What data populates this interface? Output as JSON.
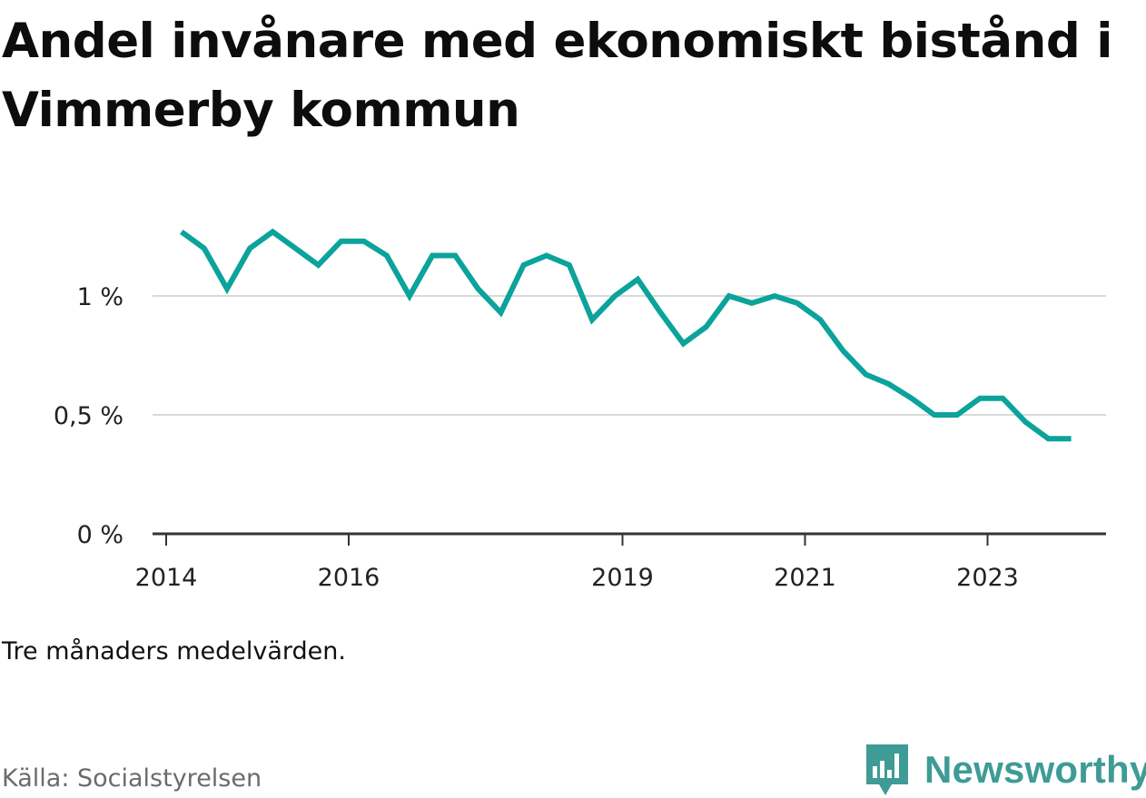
{
  "title": "Andel invånare med ekonomiskt bistånd i Vimmerby kommun",
  "note": "Tre månaders medelvärden.",
  "source": "Källa: Socialstyrelsen",
  "brand": {
    "name": "Newsworthy",
    "color": "#3e9b95"
  },
  "colors": {
    "line": "#0ba39b",
    "grid": "#d9d9d9",
    "axis": "#333333"
  },
  "chart_data": {
    "type": "line",
    "title": "Andel invånare med ekonomiskt bistånd i Vimmerby kommun",
    "xlabel": "",
    "ylabel": "",
    "grid": true,
    "legend": "none",
    "x_ticks": [
      "2014",
      "2016",
      "2019",
      "2021",
      "2023"
    ],
    "y_ticks": [
      "0 %",
      "0,5 %",
      "1 %"
    ],
    "y_tick_values": [
      0,
      0.5,
      1
    ],
    "ylim": [
      0,
      1.3
    ],
    "x": [
      "2014-03",
      "2014-06",
      "2014-09",
      "2014-12",
      "2015-03",
      "2015-06",
      "2015-09",
      "2015-12",
      "2016-03",
      "2016-06",
      "2016-09",
      "2016-12",
      "2017-03",
      "2017-06",
      "2017-09",
      "2017-12",
      "2018-03",
      "2018-06",
      "2018-09",
      "2018-12",
      "2019-03",
      "2019-06",
      "2019-09",
      "2019-12",
      "2020-03",
      "2020-06",
      "2020-09",
      "2020-12",
      "2021-03",
      "2021-06",
      "2021-09",
      "2021-12",
      "2022-03",
      "2022-06",
      "2022-09",
      "2022-12",
      "2023-03",
      "2023-06",
      "2023-09",
      "2023-12"
    ],
    "series": [
      {
        "values": [
          1.27,
          1.2,
          1.03,
          1.2,
          1.27,
          1.2,
          1.13,
          1.23,
          1.23,
          1.17,
          1.0,
          1.17,
          1.17,
          1.03,
          0.93,
          1.13,
          1.17,
          1.13,
          0.9,
          1.0,
          1.07,
          0.93,
          0.8,
          0.87,
          1.0,
          0.97,
          1.0,
          0.97,
          0.9,
          0.77,
          0.67,
          0.63,
          0.57,
          0.5,
          0.5,
          0.57,
          0.57,
          0.47,
          0.4,
          0.4
        ]
      }
    ]
  }
}
